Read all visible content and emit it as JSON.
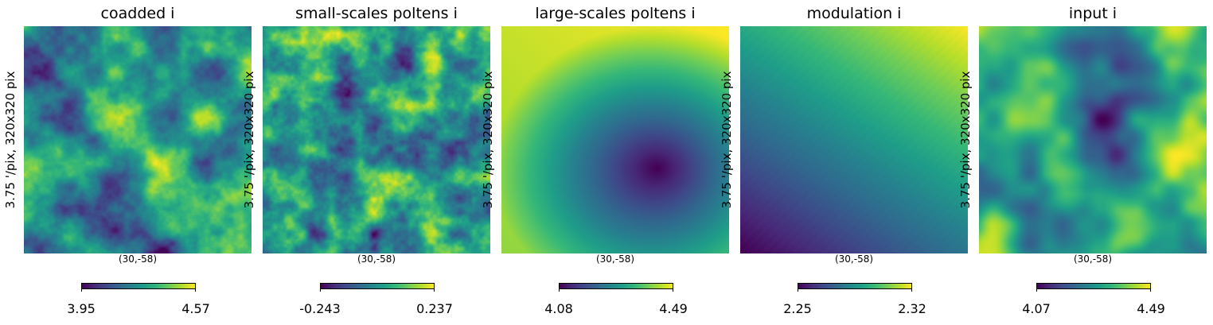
{
  "chart_data": [
    {
      "type": "heatmap",
      "title": "coadded i",
      "ylabel": "3.75 '/pix,   320x320 pix",
      "center_label": "(30,-58)",
      "colormap": "viridis",
      "colorbar": {
        "min": "3.95",
        "max": "4.57"
      },
      "pattern": "noise-mid"
    },
    {
      "type": "heatmap",
      "title": "small-scales poltens i",
      "ylabel": "3.75 '/pix,   320x320 pix",
      "center_label": "(30,-58)",
      "colormap": "viridis",
      "colorbar": {
        "min": "-0.243",
        "max": "0.237"
      },
      "pattern": "noise-fine"
    },
    {
      "type": "heatmap",
      "title": "large-scales poltens i",
      "ylabel": "3.75 '/pix,   320x320 pix",
      "center_label": "(30,-58)",
      "colormap": "viridis",
      "colorbar": {
        "min": "4.08",
        "max": "4.49"
      },
      "pattern": "smooth-blob"
    },
    {
      "type": "heatmap",
      "title": "modulation i",
      "ylabel": "3.75 '/pix,   320x320 pix",
      "center_label": "(30,-58)",
      "colormap": "viridis",
      "colorbar": {
        "min": "2.25",
        "max": "2.32"
      },
      "pattern": "diagonal-gradient"
    },
    {
      "type": "heatmap",
      "title": "input  i",
      "ylabel": "3.75 '/pix,   320x320 pix",
      "center_label": "(30,-58)",
      "colormap": "viridis",
      "colorbar": {
        "min": "4.07",
        "max": "4.49"
      },
      "pattern": "smooth-noise"
    }
  ]
}
